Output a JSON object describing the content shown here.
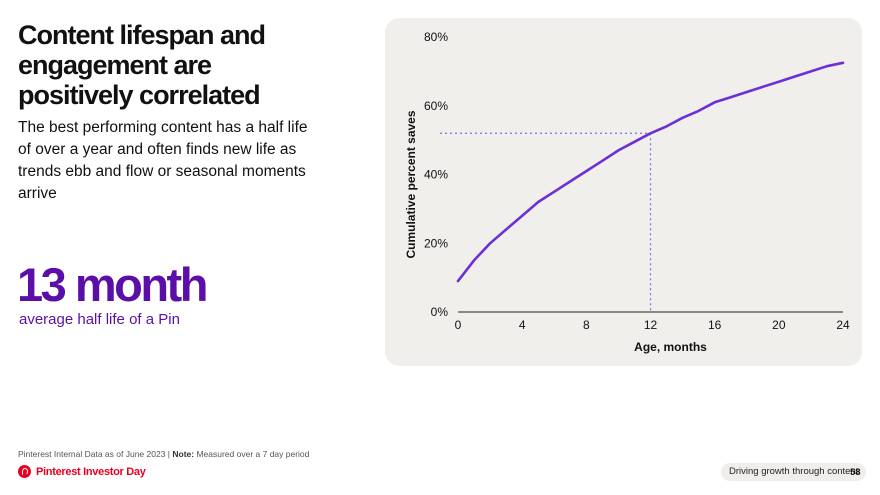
{
  "headline": "Content lifespan and engagement are positively correlated",
  "subtext": "The best performing content has a half life of over a year and often finds new life as trends ebb and flow or seasonal moments arrive",
  "stat": {
    "value": "13 month",
    "label": "average half life of a Pin"
  },
  "footnote": {
    "source": "Pinterest Internal Data as of June 2023 | ",
    "note_label": "Note:",
    "note_text": " Measured over a 7 day period"
  },
  "brand": {
    "name": "Pinterest Investor Day",
    "logo_icon": "pinterest-logo-icon"
  },
  "footer": {
    "section": "Driving growth through content",
    "page": "58"
  },
  "colors": {
    "accent": "#5b0fa8",
    "line": "#6d2fd6",
    "guide": "#7b6fe0",
    "panel": "#f0efec",
    "brand": "#e60023"
  },
  "chart_data": {
    "type": "line",
    "xlabel": "Age, months",
    "ylabel": "Cumulative percent saves",
    "xlim": [
      0,
      24
    ],
    "ylim": [
      0,
      80
    ],
    "x_ticks": [
      0,
      4,
      8,
      12,
      16,
      20,
      24
    ],
    "x_tick_labels": [
      "0",
      "4",
      "8",
      "12",
      "16",
      "20",
      "24"
    ],
    "y_ticks": [
      0,
      20,
      40,
      60,
      80
    ],
    "y_tick_labels": [
      "0%",
      "20%",
      "40%",
      "60%",
      "80%"
    ],
    "grid": false,
    "series": [
      {
        "values": [
          {
            "x": 0,
            "y": 9
          },
          {
            "x": 1,
            "y": 15
          },
          {
            "x": 2,
            "y": 20
          },
          {
            "x": 3,
            "y": 24
          },
          {
            "x": 4,
            "y": 28
          },
          {
            "x": 5,
            "y": 32
          },
          {
            "x": 6,
            "y": 35
          },
          {
            "x": 7,
            "y": 38
          },
          {
            "x": 8,
            "y": 41
          },
          {
            "x": 9,
            "y": 44
          },
          {
            "x": 10,
            "y": 47
          },
          {
            "x": 11,
            "y": 49.5
          },
          {
            "x": 12,
            "y": 52
          },
          {
            "x": 13,
            "y": 54
          },
          {
            "x": 14,
            "y": 56.5
          },
          {
            "x": 15,
            "y": 58.5
          },
          {
            "x": 16,
            "y": 61
          },
          {
            "x": 17,
            "y": 62.5
          },
          {
            "x": 18,
            "y": 64
          },
          {
            "x": 19,
            "y": 65.5
          },
          {
            "x": 20,
            "y": 67
          },
          {
            "x": 21,
            "y": 68.5
          },
          {
            "x": 22,
            "y": 70
          },
          {
            "x": 23,
            "y": 71.5
          },
          {
            "x": 24,
            "y": 72.5
          }
        ]
      }
    ],
    "annotations": [
      {
        "type": "crosshair",
        "x": 12,
        "y": 52
      }
    ]
  }
}
